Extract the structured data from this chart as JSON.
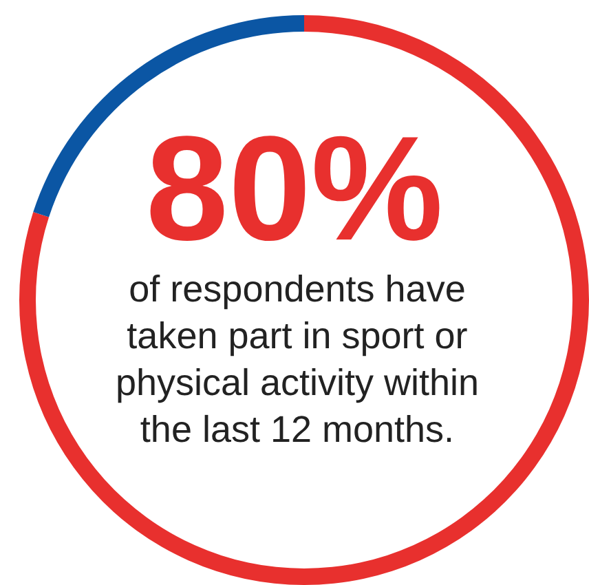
{
  "chart_data": {
    "type": "donut",
    "title": "80%",
    "subtitle": "of respondents have taken part in sport or physical activity within the last 12 months.",
    "categories": [
      null,
      null
    ],
    "values": [
      80,
      20
    ],
    "colors": [
      "#e8302e",
      "#0b56a4"
    ]
  }
}
